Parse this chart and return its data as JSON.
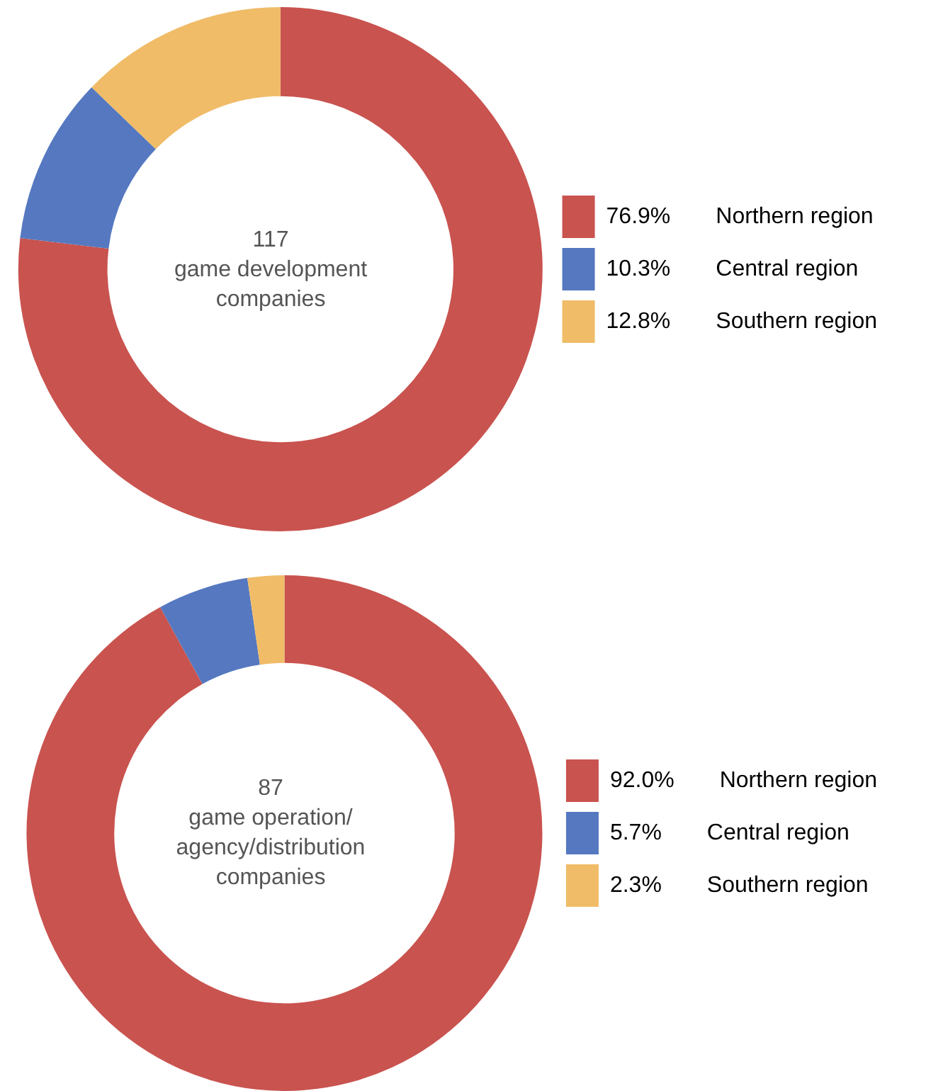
{
  "chart_data": [
    {
      "type": "donut",
      "categories": [
        "Northern region",
        "Central region",
        "Southern region"
      ],
      "values": [
        76.9,
        10.3,
        12.8
      ],
      "colors": [
        "#c9534f",
        "#5578c0",
        "#f0bc68"
      ],
      "value_labels": [
        "76.9%",
        "10.3%",
        "12.8%"
      ],
      "annotations": [
        "117\ngame development\ncompanies"
      ],
      "legend": "right"
    },
    {
      "type": "donut",
      "categories": [
        "Northern region",
        "Central region",
        "Southern region"
      ],
      "values": [
        92.0,
        5.7,
        2.3
      ],
      "colors": [
        "#c9534f",
        "#5578c0",
        "#f0bc68"
      ],
      "value_labels": [
        "92.0%",
        "5.7%",
        "2.3%"
      ],
      "annotations": [
        "87\ngame operation/\nagency/distribution\ncompanies"
      ],
      "legend": "right"
    }
  ]
}
